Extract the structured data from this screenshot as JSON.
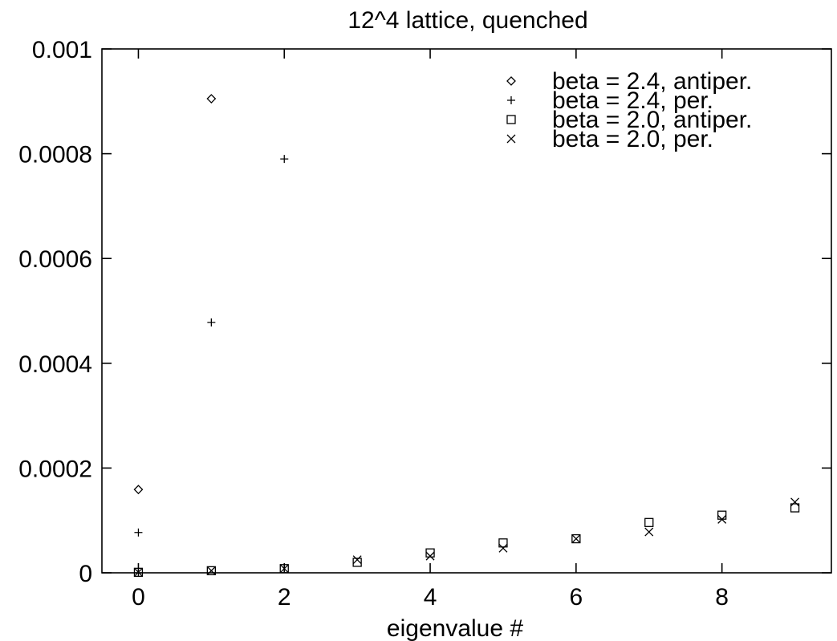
{
  "chart_data": {
    "type": "scatter",
    "title": "12^4 lattice, quenched",
    "xlabel": "eigenvalue #",
    "ylabel": "",
    "xlim": [
      -0.5,
      9.5
    ],
    "ylim": [
      0,
      0.001
    ],
    "xticks": [
      0,
      2,
      4,
      6,
      8
    ],
    "xtick_labels": [
      "0",
      "2",
      "4",
      "6",
      "8"
    ],
    "yticks": [
      0,
      0.0002,
      0.0004,
      0.0006,
      0.0008,
      0.001
    ],
    "ytick_labels": [
      "0",
      "0.0002",
      "0.0004",
      "0.0006",
      "0.0008",
      "0.001"
    ],
    "grid": false,
    "legend_position": "top-right",
    "series": [
      {
        "name": "beta = 2.4, antiper.",
        "marker": "diamond",
        "points": [
          [
            0,
            0.000159
          ],
          [
            1,
            0.000905
          ]
        ]
      },
      {
        "name": "beta = 2.4, per.",
        "marker": "plus",
        "points": [
          [
            0,
            0.0
          ],
          [
            0,
            7.7e-05
          ],
          [
            1,
            0.000478
          ],
          [
            2,
            0.00079
          ]
        ]
      },
      {
        "name": "beta = 2.0, antiper.",
        "marker": "square",
        "points": [
          [
            0,
            1e-06
          ],
          [
            1,
            4e-06
          ],
          [
            2,
            8e-06
          ],
          [
            3,
            2e-05
          ],
          [
            4,
            3.8e-05
          ],
          [
            5,
            5.7e-05
          ],
          [
            6,
            6.5e-05
          ],
          [
            7,
            9.6e-05
          ],
          [
            8,
            0.00011
          ],
          [
            9,
            0.000124
          ]
        ]
      },
      {
        "name": "beta = 2.0, per.",
        "marker": "cross",
        "points": [
          [
            0,
            1e-06
          ],
          [
            1,
            4e-06
          ],
          [
            2,
            8e-06
          ],
          [
            3,
            2.5e-05
          ],
          [
            4,
            3.2e-05
          ],
          [
            5,
            4.7e-05
          ],
          [
            6,
            6.5e-05
          ],
          [
            7,
            7.8e-05
          ],
          [
            8,
            0.000102
          ],
          [
            9,
            0.000135
          ]
        ]
      }
    ]
  }
}
